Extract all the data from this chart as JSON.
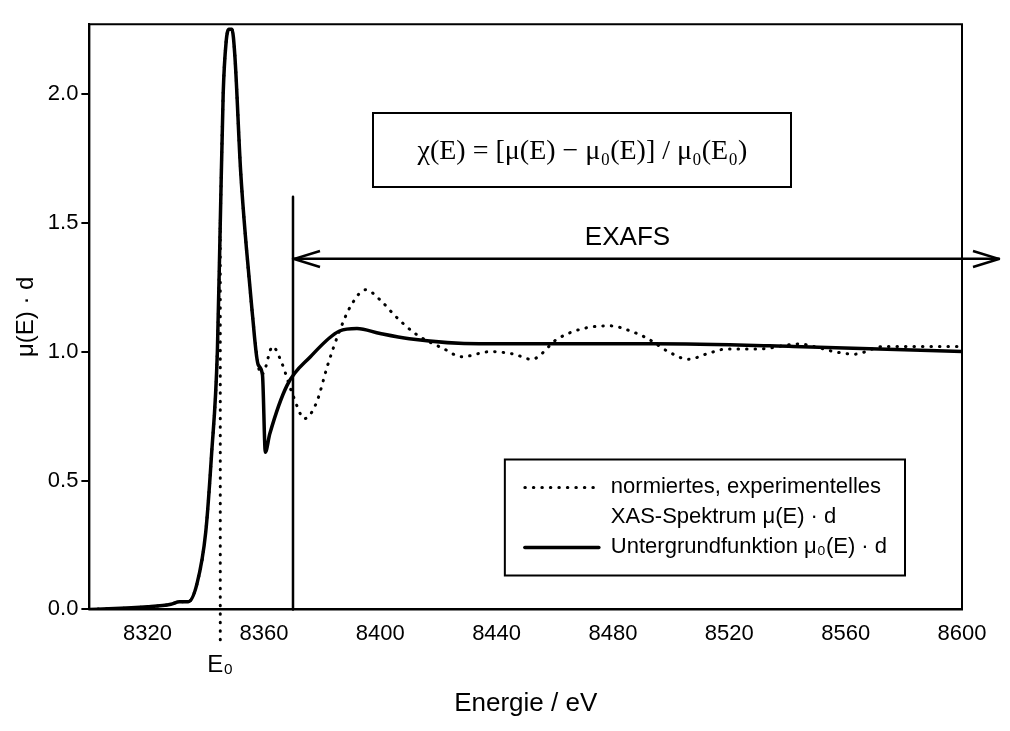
{
  "chart_data": {
    "type": "line",
    "xlabel": "Energie / eV",
    "ylabel": "μ(E) · d",
    "xlim": [
      8300,
      8600
    ],
    "xticks": [
      8320,
      8360,
      8400,
      8440,
      8480,
      8520,
      8560,
      8600
    ],
    "ylim": [
      0,
      2.27
    ],
    "yticks": [
      {
        "value": 0,
        "label": "0.0"
      },
      {
        "value": 0.5,
        "label": "0.5"
      },
      {
        "value": 1,
        "label": "1.0"
      },
      {
        "value": 1.5,
        "label": "1.5"
      },
      {
        "value": 2,
        "label": "2.0"
      }
    ],
    "legend": "bottom right",
    "grid": false,
    "series": [
      {
        "name": "normiertes, experimentelles XAS-Spektrum μ(E) · d",
        "color": "#000000",
        "line_style": "dotted",
        "x": [
          8300,
          8320,
          8328,
          8331,
          8334,
          8337,
          8340,
          8342,
          8344,
          8345,
          8346,
          8347,
          8348,
          8349,
          8350,
          8352,
          8354,
          8356,
          8358,
          8359,
          8360,
          8363,
          8366,
          8370,
          8374,
          8378,
          8382,
          8386,
          8390,
          8395,
          8400,
          8405,
          8412,
          8422,
          8428,
          8438,
          8446,
          8452,
          8461,
          8470,
          8479,
          8486,
          8492,
          8499,
          8506,
          8512,
          8519,
          8530,
          8544,
          8549,
          8556,
          8563,
          8573,
          8590,
          8600
        ],
        "values": [
          0.0,
          0.01,
          0.02,
          0.03,
          0.03,
          0.1,
          0.3,
          0.6,
          1.0,
          1.5,
          2.0,
          2.2,
          2.25,
          2.25,
          2.15,
          1.7,
          1.4,
          1.15,
          0.95,
          0.91,
          0.92,
          1.02,
          0.96,
          0.83,
          0.74,
          0.8,
          0.95,
          1.08,
          1.18,
          1.24,
          1.2,
          1.14,
          1.07,
          1.01,
          0.98,
          1.0,
          0.99,
          0.97,
          1.05,
          1.09,
          1.1,
          1.08,
          1.05,
          1.0,
          0.97,
          0.99,
          1.01,
          1.01,
          1.03,
          1.02,
          1.0,
          0.99,
          1.02,
          1.02,
          1.02
        ]
      },
      {
        "name": "Untergrundfunktion μ₀(E) · d",
        "color": "#000000",
        "line_style": "solid",
        "x": [
          8300,
          8320,
          8328,
          8331,
          8334,
          8337,
          8340,
          8342,
          8344,
          8345,
          8346,
          8347,
          8348,
          8349,
          8350,
          8352,
          8354,
          8356,
          8358,
          8359.5,
          8360.5,
          8362,
          8368,
          8376,
          8386,
          8392,
          8400,
          8410,
          8434,
          8458,
          8494,
          8542,
          8600
        ],
        "values": [
          0.0,
          0.01,
          0.02,
          0.03,
          0.03,
          0.1,
          0.3,
          0.6,
          1.0,
          1.5,
          2.0,
          2.2,
          2.25,
          2.25,
          2.15,
          1.7,
          1.4,
          1.15,
          0.95,
          0.91,
          0.61,
          0.68,
          0.87,
          0.98,
          1.08,
          1.09,
          1.07,
          1.05,
          1.03,
          1.03,
          1.03,
          1.02,
          1.0
        ]
      }
    ],
    "ref_lines": [
      {
        "axis": "x",
        "value": 8345,
        "label": "E₀",
        "line_style": "dotted"
      },
      {
        "axis": "x",
        "value": 8370,
        "line_style": "solid"
      },
      {
        "axis": "y",
        "value": 1.36,
        "label": "EXAFS",
        "line_style": "solid"
      }
    ],
    "annotations": [
      "χ(E) = [μ(E) − μ₀(E)] / μ₀(E₀)"
    ]
  }
}
